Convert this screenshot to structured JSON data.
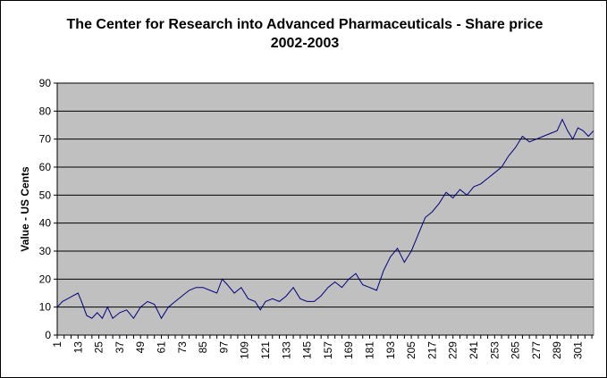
{
  "chart_data": {
    "type": "line",
    "title": "The Center for Research into Advanced Pharmaceuticals - Share price 2002-2003",
    "xlabel": "",
    "ylabel": "Value - US Cents",
    "xlim": [
      1,
      310
    ],
    "ylim": [
      0,
      90
    ],
    "y_ticks": [
      0,
      10,
      20,
      30,
      40,
      50,
      60,
      70,
      80,
      90
    ],
    "x_ticks": [
      1,
      13,
      25,
      37,
      49,
      61,
      73,
      85,
      97,
      109,
      121,
      133,
      145,
      157,
      169,
      181,
      193,
      205,
      217,
      229,
      241,
      253,
      265,
      277,
      289,
      301
    ],
    "grid": "horizontal",
    "legend": "none",
    "colors": {
      "plot_area": "#c0c0c0",
      "line": "#000080",
      "grid": "#000000"
    },
    "series": [
      {
        "x": [
          1,
          4,
          7,
          10,
          13,
          15,
          18,
          21,
          24,
          27,
          30,
          33,
          37,
          41,
          45,
          49,
          53,
          57,
          61,
          65,
          69,
          73,
          77,
          81,
          85,
          89,
          93,
          96,
          99,
          103,
          107,
          111,
          115,
          118,
          121,
          125,
          129,
          133,
          137,
          141,
          145,
          149,
          153,
          157,
          161,
          165,
          169,
          173,
          177,
          181,
          185,
          189,
          193,
          197,
          201,
          205,
          209,
          213,
          217,
          221,
          225,
          229,
          233,
          237,
          241,
          245,
          249,
          253,
          257,
          261,
          265,
          269,
          273,
          277,
          281,
          285,
          289,
          292,
          295,
          298,
          301,
          304,
          307,
          310
        ],
        "y": [
          10,
          12,
          13,
          14,
          15,
          12,
          7,
          6,
          8,
          6,
          10,
          6,
          8,
          9,
          6,
          10,
          12,
          11,
          6,
          10,
          12,
          14,
          16,
          17,
          17,
          16,
          15,
          20,
          18,
          15,
          17,
          13,
          12,
          9,
          12,
          13,
          12,
          14,
          17,
          13,
          12,
          12,
          14,
          17,
          19,
          17,
          20,
          22,
          18,
          17,
          16,
          23,
          28,
          31,
          26,
          30,
          36,
          42,
          44,
          47,
          51,
          49,
          52,
          50,
          53,
          54,
          56,
          58,
          60,
          64,
          67,
          71,
          69,
          70,
          71,
          72,
          73,
          77,
          73,
          70,
          74,
          73,
          71,
          73
        ]
      }
    ]
  }
}
